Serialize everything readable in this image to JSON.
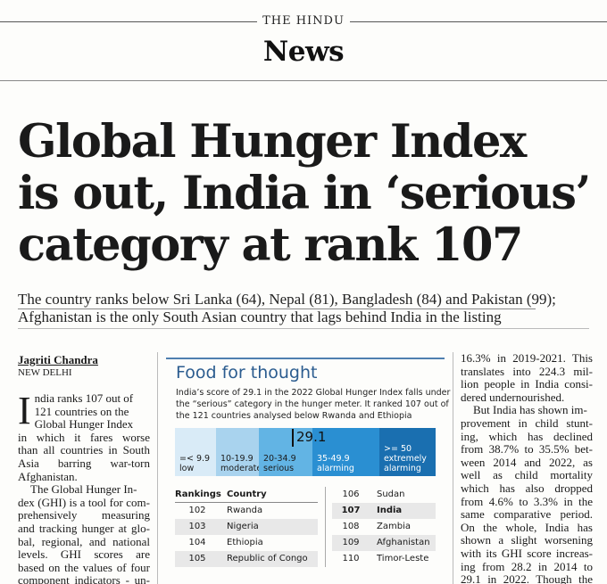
{
  "masthead": {
    "brand": "THE HINDU",
    "section": "News"
  },
  "headline": [
    "Global Hunger Index",
    "is out, India in ‘serious’",
    "category at rank 107"
  ],
  "standfirst": [
    "The country ranks below Sri Lanka (64), Nepal (81), Bangladesh (84) and Pakistan (99);",
    "Afghanistan is the only South Asian country that lags behind India in the listing"
  ],
  "byline": {
    "author": "Jagriti Chandra",
    "dateline": "NEW DELHI"
  },
  "column1": {
    "dropcap": "I",
    "dropcap_lines": [
      "ndia ranks 107 out of",
      "121 countries on the",
      "Global Hunger Index"
    ],
    "lines": [
      "in which it fares worse",
      "than all countries in South",
      "Asia barring war-torn",
      "Afghanistan.",
      "The Global Hunger In-",
      "dex (GHI) is a tool for com-",
      "prehensively measuring",
      "and tracking hunger at glo-",
      "bal, regional, and national",
      "levels. GHI scores are",
      "based on the values of four",
      "component indicators - un-"
    ]
  },
  "column3": {
    "lines": [
      "16.3% in 2019-2021. This",
      "translates into 224.3 mil-",
      "lion people in India consi-",
      "dered undernourished.",
      "But India has shown im-",
      "provement in child stunt-",
      "ing, which has declined",
      "from 38.7% to 35.5% bet-",
      "ween 2014 and 2022, as",
      "well as child mortality",
      "which has also dropped",
      "from 4.6% to 3.3% in the",
      "same comparative period.",
      "On the whole, India has",
      "shown a slight worsening",
      "with its GHI score increas-",
      "ing from 28.2 in 2014 to",
      "29.1 in 2022. Though the"
    ]
  },
  "infobox": {
    "title": "Food for thought",
    "intro": [
      "India’s score of 29.1 in the 2022 Global Hunger Index falls under",
      "the “serious” category in the hunger meter. It ranked 107 out of",
      "the 121 countries analysed below Rwanda and Ethiopia"
    ],
    "score": "29.1",
    "score_value": 29.1,
    "meter": [
      {
        "range": "=< 9.9",
        "label": "low",
        "color": "#d9ebf7"
      },
      {
        "range": "10-19.9",
        "label": "moderate",
        "color": "#a9d3ee"
      },
      {
        "range": "20-34.9",
        "label": "serious",
        "color": "#62b4e4"
      },
      {
        "range": "35-49.9",
        "label": "alarming",
        "color": "#2a8fd2"
      },
      {
        "range": ">= 50",
        "label": "extremely",
        "label2": "alarming",
        "color": "#1a6fb0"
      }
    ],
    "table_headers": {
      "rank": "Rankings",
      "country": "Country"
    },
    "rankings_left": [
      {
        "rank": "102",
        "country": "Rwanda"
      },
      {
        "rank": "103",
        "country": "Nigeria"
      },
      {
        "rank": "104",
        "country": "Ethiopia"
      },
      {
        "rank": "105",
        "country": "Republic of Congo"
      }
    ],
    "rankings_right": [
      {
        "rank": "106",
        "country": "Sudan"
      },
      {
        "rank": "107",
        "country": "India"
      },
      {
        "rank": "108",
        "country": "Zambia"
      },
      {
        "rank": "109",
        "country": "Afghanistan"
      },
      {
        "rank": "110",
        "country": "Timor-Leste"
      }
    ]
  }
}
